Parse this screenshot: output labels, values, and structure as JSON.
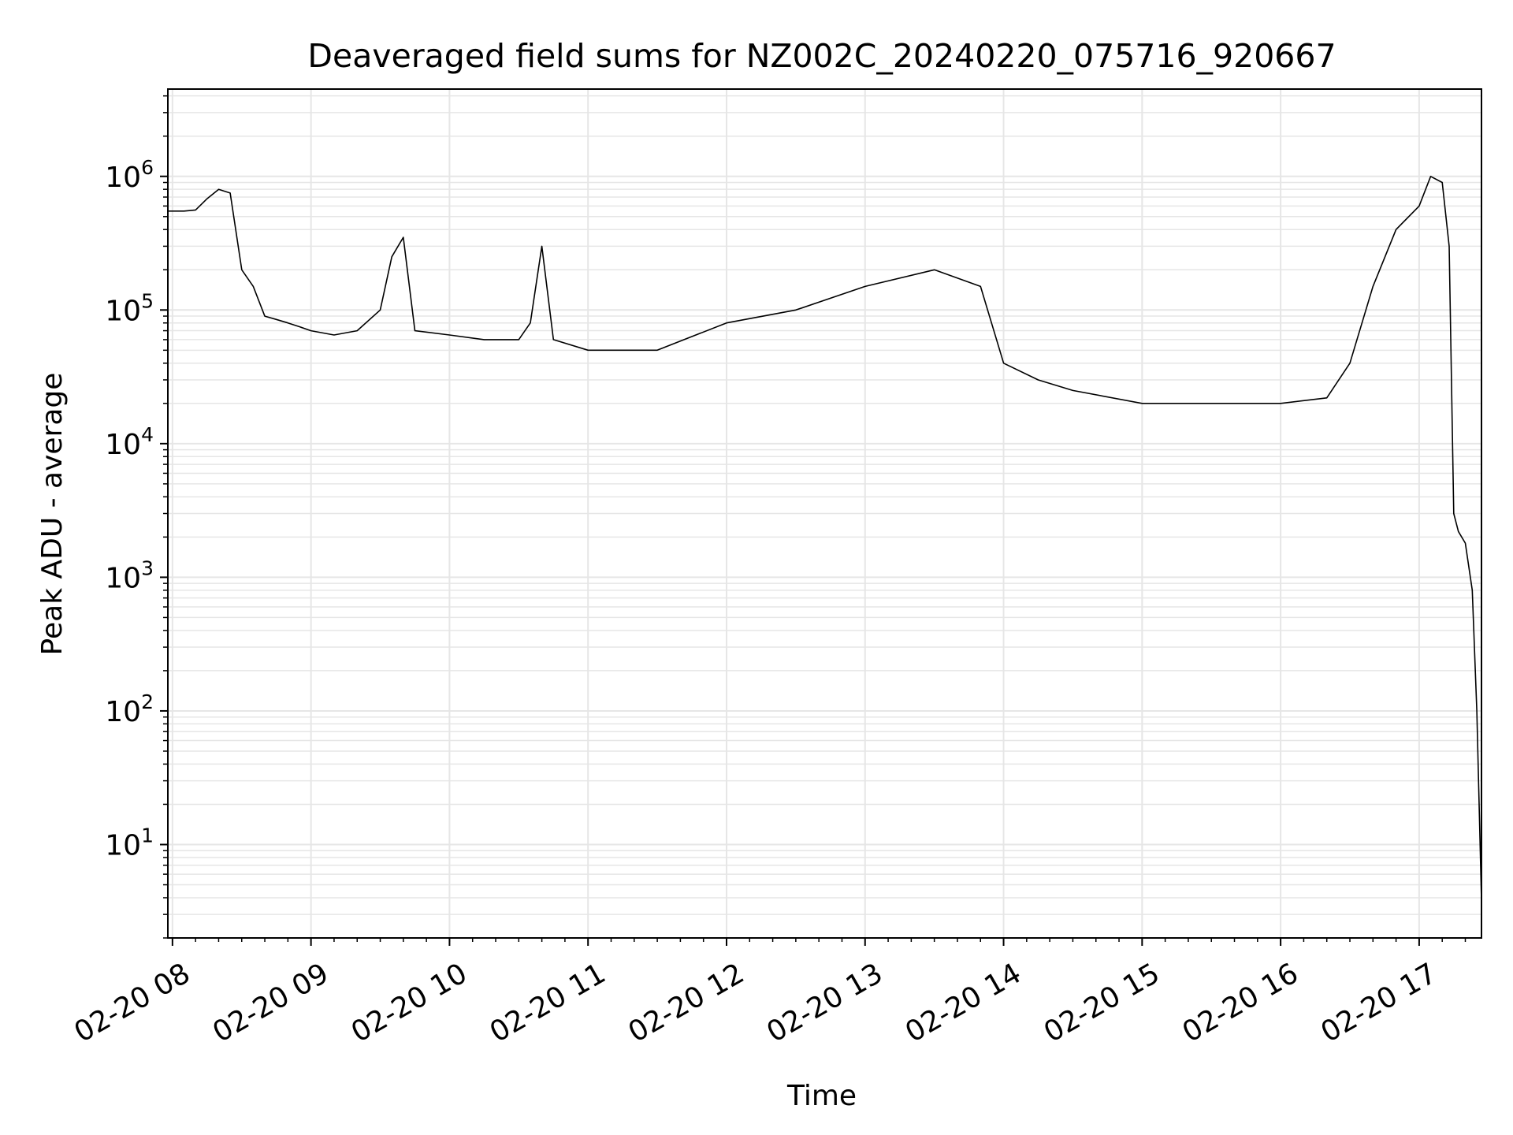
{
  "chart_data": {
    "type": "line",
    "title": "Deaveraged field sums for NZ002C_20240220_075716_920667",
    "xlabel": "Time",
    "ylabel": "Peak ADU - average",
    "yscale": "log",
    "xlim": [
      "2024-02-20T07:58",
      "2024-02-20T17:27"
    ],
    "ylim": [
      2,
      4500000.0
    ],
    "x_ticks": [
      {
        "value": "2024-02-20T08:00",
        "label": "02-20 08"
      },
      {
        "value": "2024-02-20T09:00",
        "label": "02-20 09"
      },
      {
        "value": "2024-02-20T10:00",
        "label": "02-20 10"
      },
      {
        "value": "2024-02-20T11:00",
        "label": "02-20 11"
      },
      {
        "value": "2024-02-20T12:00",
        "label": "02-20 12"
      },
      {
        "value": "2024-02-20T13:00",
        "label": "02-20 13"
      },
      {
        "value": "2024-02-20T14:00",
        "label": "02-20 14"
      },
      {
        "value": "2024-02-20T15:00",
        "label": "02-20 15"
      },
      {
        "value": "2024-02-20T16:00",
        "label": "02-20 16"
      },
      {
        "value": "2024-02-20T17:00",
        "label": "02-20 17"
      }
    ],
    "y_ticks": [
      {
        "value": 10,
        "base": "10",
        "exp": "1"
      },
      {
        "value": 100,
        "base": "10",
        "exp": "2"
      },
      {
        "value": 1000,
        "base": "10",
        "exp": "3"
      },
      {
        "value": 10000,
        "base": "10",
        "exp": "4"
      },
      {
        "value": 100000,
        "base": "10",
        "exp": "5"
      },
      {
        "value": 1000000,
        "base": "10",
        "exp": "6"
      }
    ],
    "grid": true,
    "legend": "none",
    "line_color": "#000000",
    "grid_color": "#e6e6e6",
    "series": [
      {
        "x": [
          "2024-02-20T07:58",
          "2024-02-20T08:05",
          "2024-02-20T08:10",
          "2024-02-20T08:15",
          "2024-02-20T08:20",
          "2024-02-20T08:25",
          "2024-02-20T08:30",
          "2024-02-20T08:35",
          "2024-02-20T08:40",
          "2024-02-20T08:45",
          "2024-02-20T08:50",
          "2024-02-20T08:55",
          "2024-02-20T09:00",
          "2024-02-20T09:10",
          "2024-02-20T09:20",
          "2024-02-20T09:30",
          "2024-02-20T09:35",
          "2024-02-20T09:40",
          "2024-02-20T09:45",
          "2024-02-20T10:00",
          "2024-02-20T10:15",
          "2024-02-20T10:30",
          "2024-02-20T10:35",
          "2024-02-20T10:40",
          "2024-02-20T10:45",
          "2024-02-20T11:00",
          "2024-02-20T11:30",
          "2024-02-20T12:00",
          "2024-02-20T12:30",
          "2024-02-20T13:00",
          "2024-02-20T13:30",
          "2024-02-20T13:50",
          "2024-02-20T14:00",
          "2024-02-20T14:15",
          "2024-02-20T14:30",
          "2024-02-20T15:00",
          "2024-02-20T15:30",
          "2024-02-20T16:00",
          "2024-02-20T16:20",
          "2024-02-20T16:30",
          "2024-02-20T16:40",
          "2024-02-20T16:50",
          "2024-02-20T17:00",
          "2024-02-20T17:05",
          "2024-02-20T17:10",
          "2024-02-20T17:13",
          "2024-02-20T17:15",
          "2024-02-20T17:17",
          "2024-02-20T17:20",
          "2024-02-20T17:23",
          "2024-02-20T17:25",
          "2024-02-20T17:27"
        ],
        "y": [
          550000,
          550000,
          560000,
          680000,
          800000,
          750000,
          200000,
          150000,
          90000,
          85000,
          80000,
          75000,
          70000,
          65000,
          70000,
          100000,
          250000,
          350000,
          70000,
          65000,
          60000,
          60000,
          80000,
          300000,
          60000,
          50000,
          50000,
          80000,
          100000,
          150000,
          200000,
          150000,
          40000,
          30000,
          25000,
          20000,
          20000,
          20000,
          22000,
          40000,
          150000,
          400000,
          600000,
          1000000,
          900000,
          300000,
          3000,
          2200,
          1800,
          800,
          100,
          3.8
        ]
      }
    ]
  }
}
